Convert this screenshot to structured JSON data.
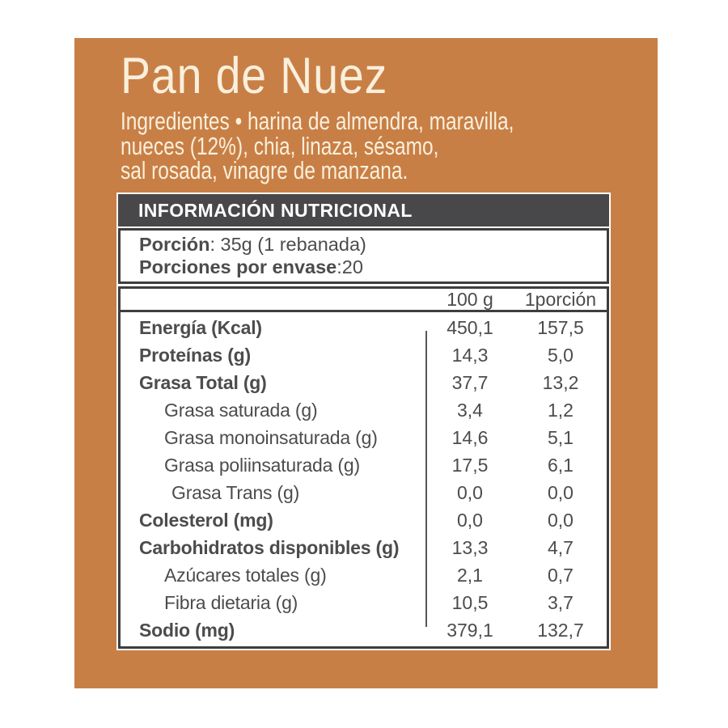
{
  "colors": {
    "page_bg": "#ffffff",
    "card_bg": "#c87f45",
    "bar_bg": "#48474a",
    "border": "#3e3e40",
    "ink": "#4c4c4c",
    "light": "#f9efdc"
  },
  "product": {
    "title": "Pan de Nuez",
    "ingredients_line1": "Ingredientes • harina de almendra, maravilla,",
    "ingredients_line2": "nueces (12%), chia, linaza, sésamo,",
    "ingredients_line3": "sal rosada, vinagre de manzana."
  },
  "nutrition": {
    "header": "INFORMACIÓN NUTRICIONAL",
    "portion_label": "Porción",
    "portion_rest": ": 35g (1 rebanada)",
    "servings_label": "Porciones por envase",
    "servings_rest": ":20",
    "columns": {
      "per_100g": "100 g",
      "per_portion": "1porción"
    },
    "rows": [
      {
        "label": "Energía (Kcal)",
        "per_100g": "450,1",
        "per_portion": "157,5",
        "bold": true,
        "indent": 0
      },
      {
        "label": "Proteínas (g)",
        "per_100g": "14,3",
        "per_portion": "5,0",
        "bold": true,
        "indent": 0
      },
      {
        "label": "Grasa Total (g)",
        "per_100g": "37,7",
        "per_portion": "13,2",
        "bold": true,
        "indent": 0
      },
      {
        "label": "Grasa saturada (g)",
        "per_100g": "3,4",
        "per_portion": "1,2",
        "bold": false,
        "indent": 1
      },
      {
        "label": "Grasa monoinsaturada (g)",
        "per_100g": "14,6",
        "per_portion": "5,1",
        "bold": false,
        "indent": 1
      },
      {
        "label": "Grasa poliinsaturada (g)",
        "per_100g": "17,5",
        "per_portion": "6,1",
        "bold": false,
        "indent": 1
      },
      {
        "label": "Grasa Trans (g)",
        "per_100g": "0,0",
        "per_portion": "0,0",
        "bold": false,
        "indent": 2
      },
      {
        "label": "Colesterol (mg)",
        "per_100g": "0,0",
        "per_portion": "0,0",
        "bold": true,
        "indent": 0
      },
      {
        "label": "Carbohidratos disponibles (g)",
        "per_100g": "13,3",
        "per_portion": "4,7",
        "bold": true,
        "indent": 0
      },
      {
        "label": "Azúcares totales (g)",
        "per_100g": "2,1",
        "per_portion": "0,7",
        "bold": false,
        "indent": 1
      },
      {
        "label": "Fibra dietaria (g)",
        "per_100g": "10,5",
        "per_portion": "3,7",
        "bold": false,
        "indent": 1
      },
      {
        "label": "Sodio (mg)",
        "per_100g": "379,1",
        "per_portion": "132,7",
        "bold": true,
        "indent": 0
      }
    ]
  }
}
